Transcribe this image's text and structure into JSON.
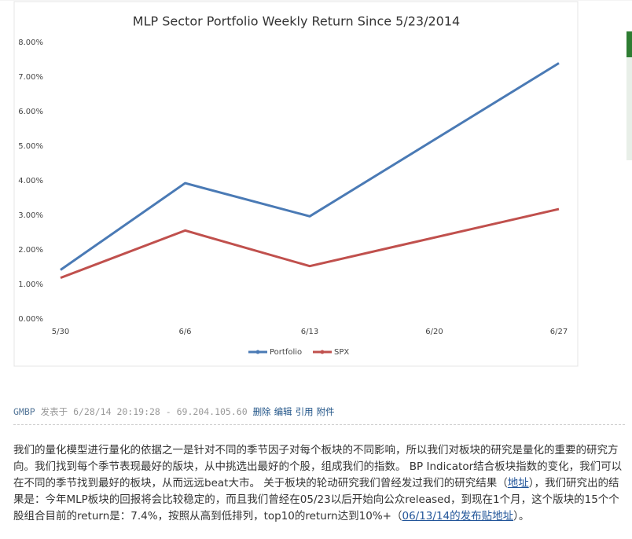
{
  "chart_data": {
    "type": "line",
    "title": "MLP Sector Portfolio Weekly Return Since 5/23/2014",
    "x": [
      "5/30",
      "6/6",
      "6/13",
      "6/27"
    ],
    "xticks": [
      "5/30",
      "6/6",
      "6/13",
      "6/20",
      "6/27"
    ],
    "series": [
      {
        "name": "Portfolio",
        "color": "#4a7ab5",
        "values": [
          1.42,
          3.93,
          2.97,
          7.4
        ]
      },
      {
        "name": "SPX",
        "color": "#c0504d",
        "values": [
          1.19,
          2.56,
          1.53,
          3.18
        ]
      }
    ],
    "ylim": [
      0,
      8
    ],
    "yticks": [
      {
        "value": 0,
        "label": "0.00%"
      },
      {
        "value": 1,
        "label": "1.00%"
      },
      {
        "value": 2,
        "label": "2.00%"
      },
      {
        "value": 3,
        "label": "3.00%"
      },
      {
        "value": 4,
        "label": "4.00%"
      },
      {
        "value": 5,
        "label": "5.00%"
      },
      {
        "value": 6,
        "label": "6.00%"
      },
      {
        "value": 7,
        "label": "7.00%"
      },
      {
        "value": 8,
        "label": "8.00%"
      }
    ],
    "grid": false,
    "legend": "bottom"
  },
  "post": {
    "author": "GMBP",
    "meta": "发表于 6/28/14 20:19:28 - 69.204.105.60",
    "actions": [
      "删除",
      "编辑",
      "引用",
      "附件"
    ],
    "body": [
      "我们的量化模型进行量化的依据之一是针对不同的季节因子对每个板块的不同影响，所以我们对板块的研究是量化的重要的研究方向。我们找到每个季节表现最好的版块，从中挑选出最好的个股，组成我们的指数。 BP Indicator结合板块指数的变化，我们可以在不同的季节找到最好的板块，从而远远beat大市。 关于板块的轮动研究我们曾经发过我们的研究结果（",
      "地址",
      "），我们研究出的结果是：今年MLP板块的回报将会比较稳定的，而且我们曾经在05/23以后开始向公众released，到现在1个月，这个版块的15个个股组合目前的return是：7.4%，按照从高到低排列，top10的return达到10%+（",
      "06/13/14的发布贴地址",
      "）。"
    ]
  }
}
